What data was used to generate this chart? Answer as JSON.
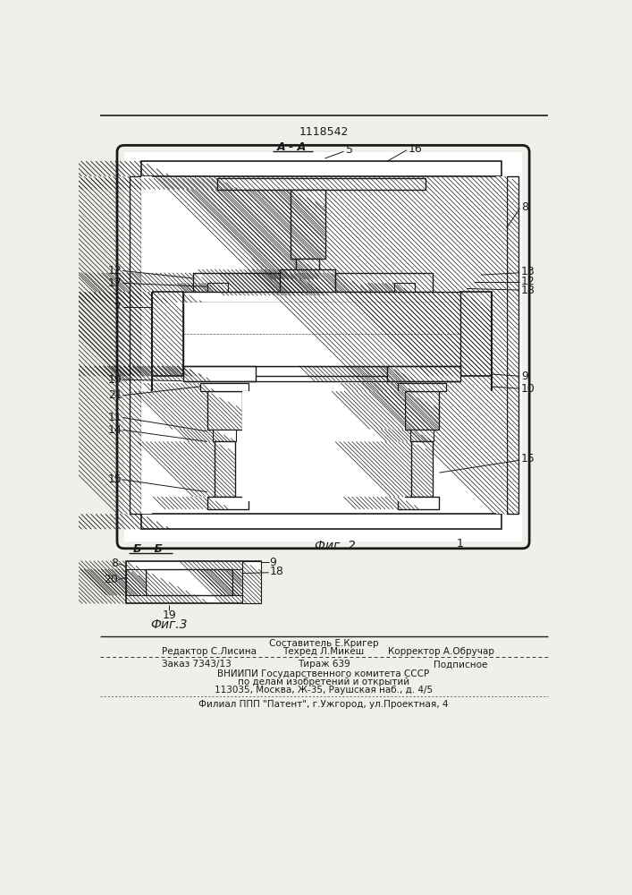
{
  "patent_number": "1118542",
  "fig2_label": "Фиг. 2",
  "fig3_label": "Фиг.3",
  "fig2_ref": "1",
  "section_aa": "А - А",
  "section_bb": "Б - Б",
  "staff_composer": "Составитель Е.Кригер",
  "staff_editor": "Редактор С.Лисина",
  "staff_tech": "Техред Л.Микеш",
  "staff_corrector": "Корректор А.Обручар",
  "order_text": "Заказ 7343/13",
  "tirazh_text": "Тираж 639",
  "podp_text": "Подписное",
  "org_line1": "ВНИИПИ Государственного комитета СССР",
  "org_line2": "по делам изобретений и открытий",
  "org_line3": "113035, Москва, Ж-35, Раушская наб., д. 4/5",
  "branch_line": "Филиал ППП \"Патент\", г.Ужгород, ул.Проектная, 4",
  "bg_color": "#f0f0eb",
  "line_color": "#1a1a1a"
}
